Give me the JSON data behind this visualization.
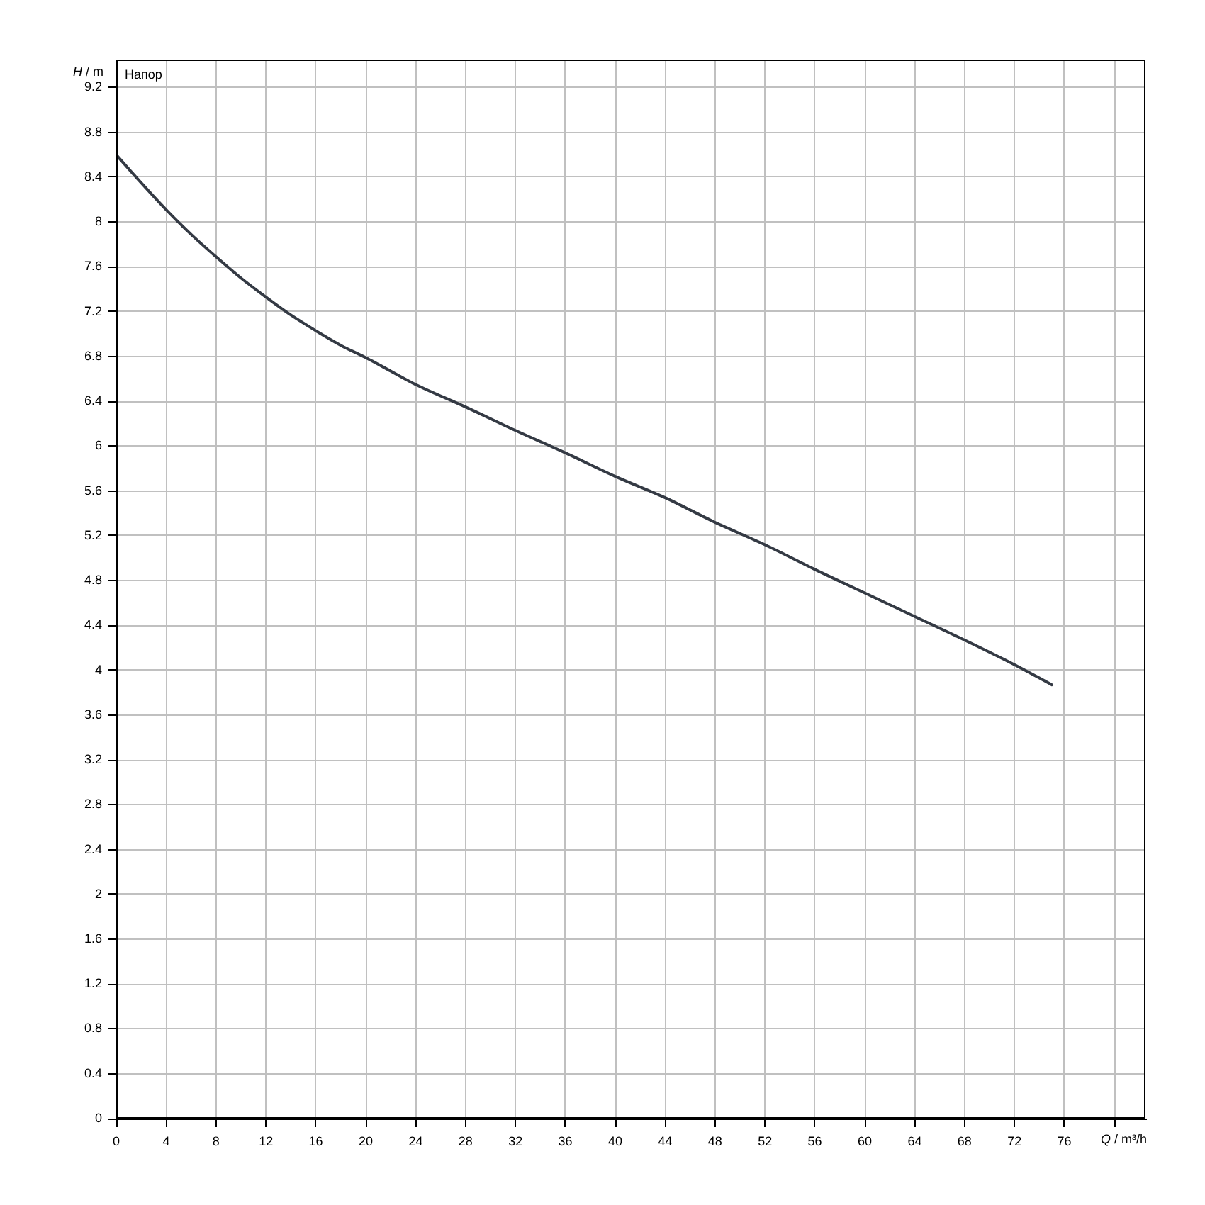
{
  "chart_data": {
    "type": "line",
    "title": "Напор",
    "xlabel": "Q / m³/h",
    "ylabel": "H / m",
    "x": [
      0,
      2,
      4,
      6,
      8,
      10,
      12,
      14,
      16,
      18,
      20,
      22,
      24,
      28,
      32,
      36,
      40,
      44,
      48,
      52,
      56,
      60,
      64,
      68,
      72,
      75
    ],
    "series": [
      {
        "color": "#343a44",
        "values": [
          8.6,
          8.35,
          8.11,
          7.89,
          7.69,
          7.5,
          7.33,
          7.17,
          7.03,
          6.9,
          6.79,
          6.67,
          6.55,
          6.35,
          6.14,
          5.94,
          5.73,
          5.54,
          5.32,
          5.12,
          4.9,
          4.69,
          4.48,
          4.27,
          4.05,
          3.87
        ]
      }
    ],
    "xlim": [
      0,
      82.5
    ],
    "ylim": [
      0,
      9.45
    ],
    "xticks": [
      0,
      4,
      8,
      12,
      16,
      20,
      24,
      28,
      32,
      36,
      40,
      44,
      48,
      52,
      56,
      60,
      64,
      68,
      72,
      76,
      {
        "value": 80,
        "label": null
      }
    ],
    "yticks": [
      0,
      0.4,
      0.8,
      1.2,
      1.6,
      2,
      2.4,
      2.8,
      3.2,
      3.6,
      4,
      4.4,
      4.8,
      5.2,
      5.6,
      6,
      6.4,
      6.8,
      7.2,
      7.6,
      8,
      8.4,
      8.8,
      9.2
    ],
    "grid": true
  }
}
